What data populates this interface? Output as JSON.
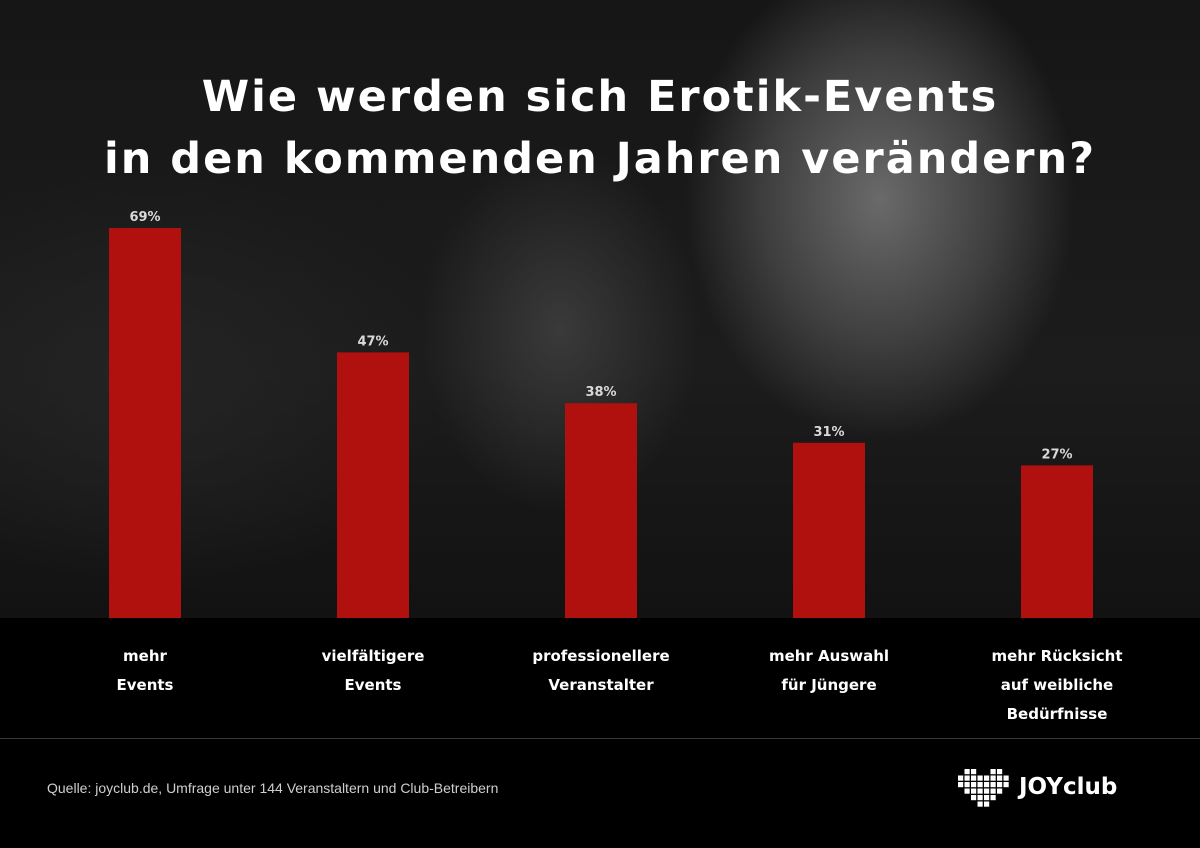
{
  "title_line1": "Wie werden sich Erotik-Events",
  "title_line2": "in den kommenden Jahren verändern?",
  "chart_data": {
    "type": "bar",
    "categories": [
      [
        "mehr",
        "Events"
      ],
      [
        "vielfältigere",
        "Events"
      ],
      [
        "professionellere",
        "Veranstalter"
      ],
      [
        "mehr Auswahl",
        "für Jüngere"
      ],
      [
        "mehr Rücksicht",
        "auf weibliche",
        "Bedürfnisse"
      ]
    ],
    "values": [
      69,
      47,
      38,
      31,
      27
    ],
    "value_labels": [
      "69%",
      "47%",
      "38%",
      "31%",
      "27%"
    ],
    "unit": "%",
    "ylim": [
      0,
      69
    ],
    "grid": false,
    "bar_color": "#b0100e"
  },
  "source": "Quelle: joyclub.de, Umfrage unter 144 Veranstaltern und Club-Betreibern",
  "brand": {
    "name": "JOYclub",
    "logo_icon": "heart-dots-icon"
  }
}
